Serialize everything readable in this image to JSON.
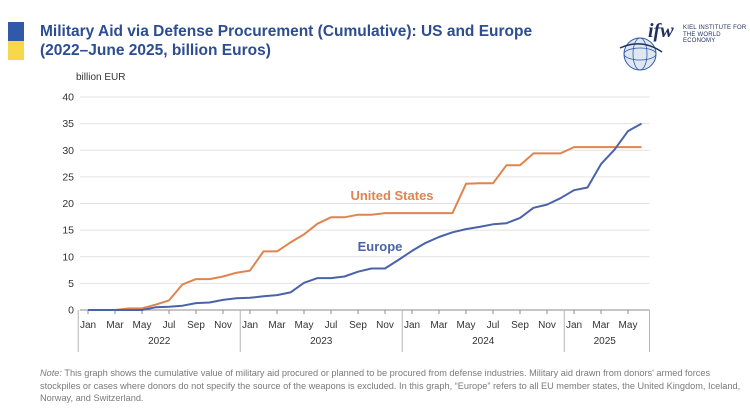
{
  "flag": {
    "blue": "#2f5aa8",
    "yellow": "#f8d74a"
  },
  "title_line1": "Military Aid via Defense Procurement (Cumulative): US and Europe",
  "title_line2": "(2022–June 2025, billion Euros)",
  "logo": {
    "mark": "ifw",
    "line1": "KIEL INSTITUTE FOR",
    "line2": "THE WORLD ECONOMY",
    "icon": "globe-icon"
  },
  "note_label": "Note:",
  "note_text": " This graph shows the cumulative value of military aid procured or planned to be procured from defense industries. Military aid drawn from donors' armed forces stockpiles or cases where donors do not specify the source of the weapons is excluded. In this graph, “Europe” refers to all EU member states, the United Kingdom, Iceland, Norway, and Switzerland.",
  "chart_data": {
    "type": "line",
    "ylabel": "billion EUR",
    "ylim": [
      0,
      40
    ],
    "yticks": [
      "0",
      "5",
      "10",
      "15",
      "20",
      "25",
      "30",
      "35",
      "40"
    ],
    "grid": true,
    "x_month_labels": [
      "Jan",
      "Mar",
      "May",
      "Jul",
      "Sep",
      "Nov",
      "Jan",
      "Mar",
      "May",
      "Jul",
      "Sep",
      "Nov",
      "Jan",
      "Mar",
      "May",
      "Jul",
      "Sep",
      "Nov",
      "Jan",
      "Mar",
      "May"
    ],
    "x_year_labels": [
      "2022",
      "2023",
      "2024",
      "2025"
    ],
    "series": [
      {
        "name": "United States",
        "color": "#e0844f",
        "values": [
          0,
          0,
          0,
          0.3,
          0.3,
          1,
          1.8,
          4.8,
          5.8,
          5.8,
          6.3,
          7,
          7.4,
          11,
          11,
          12.7,
          14.2,
          16.2,
          17.4,
          17.4,
          17.9,
          17.9,
          18.2,
          18.2,
          18.2,
          18.2,
          18.2,
          18.2,
          23.7,
          23.8,
          23.8,
          27.2,
          27.2,
          29.4,
          29.4,
          29.4,
          30.6,
          30.6,
          30.6,
          30.6,
          30.6,
          30.6
        ]
      },
      {
        "name": "Europe",
        "color": "#4a63a8",
        "values": [
          0,
          0,
          0,
          0,
          0,
          0.5,
          0.6,
          0.8,
          1.3,
          1.4,
          1.9,
          2.2,
          2.3,
          2.6,
          2.8,
          3.3,
          5.1,
          6,
          6,
          6.3,
          7.2,
          7.8,
          7.8,
          9.4,
          11.1,
          12.6,
          13.7,
          14.6,
          15.2,
          15.6,
          16.1,
          16.3,
          17.3,
          19.2,
          19.8,
          21,
          22.5,
          23,
          27.4,
          30.1,
          33.6,
          35
        ]
      }
    ]
  }
}
